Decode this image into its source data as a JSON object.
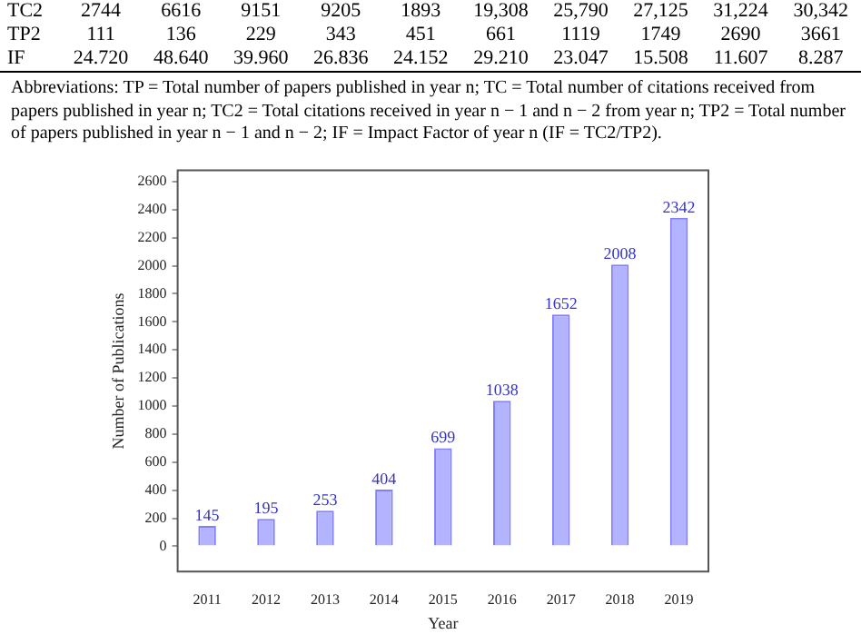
{
  "chart_data": [
    {
      "type": "other",
      "y_categories": [
        "TC2",
        "TP2",
        "IF"
      ],
      "cell_labels": [
        [
          "2744",
          "6616",
          "9151",
          "9205",
          "1893",
          "19,308",
          "25,790",
          "27,125",
          "31,224",
          "30,342"
        ],
        [
          "111",
          "136",
          "229",
          "343",
          "451",
          "661",
          "1119",
          "1749",
          "2690",
          "3661"
        ],
        [
          "24.720",
          "48.640",
          "39.960",
          "26.836",
          "24.152",
          "29.210",
          "23.047",
          "15.508",
          "11.607",
          "8.287"
        ]
      ],
      "annotations": [
        "Abbreviations: TP = Total number of papers published in year n; TC = Total number of citations received from papers published in year n; TC2 = Total citations received in year n − 1 and n − 2 from year n; TP2 = Total number of papers published in year n − 1 and n − 2; IF = Impact Factor of year n (IF = TC2/TP2)."
      ]
    },
    {
      "type": "bar",
      "xlabel": "Year",
      "ylabel": "Number of Publications",
      "categories": [
        "2011",
        "2012",
        "2013",
        "2014",
        "2015",
        "2016",
        "2017",
        "2018",
        "2019"
      ],
      "values": [
        145,
        195,
        253,
        404,
        699,
        1038,
        1652,
        2008,
        2342
      ],
      "color": "#b3b3ff",
      "data_labels": true,
      "grid": false,
      "ylim": [
        -180,
        2680
      ],
      "yticks": [
        0,
        200,
        400,
        600,
        800,
        1000,
        1200,
        1400,
        1600,
        1800,
        2000,
        2200,
        2400,
        2600
      ]
    }
  ]
}
